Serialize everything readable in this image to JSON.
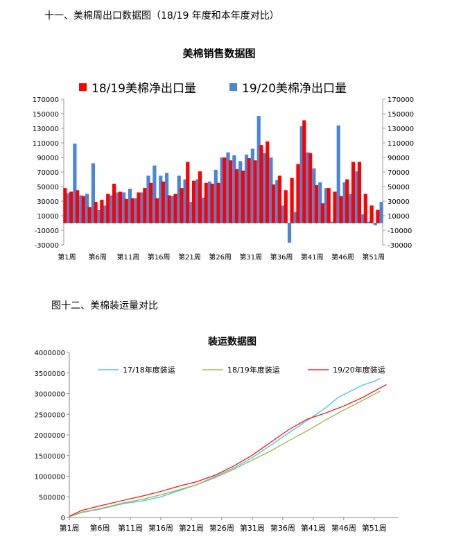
{
  "headings": {
    "section1": "十一、美棉周出口数据图（18/19 年度和本年度对比）",
    "section2": "图十二、美棉装运量对比"
  },
  "chart_data": [
    {
      "type": "bar",
      "title": "美棉销售数据图",
      "legend_position": "top",
      "grid": false,
      "ylim": [
        -30000,
        170000
      ],
      "yticks": [
        "170000",
        "150000",
        "130000",
        "110000",
        "90000",
        "70000",
        "50000",
        "30000",
        "10000",
        "-10000",
        "-30000"
      ],
      "xtick_labels": [
        "第1周",
        "第6周",
        "第11周",
        "第16周",
        "第21周",
        "第26周",
        "第31周",
        "第36周",
        "第41周",
        "第46周",
        "第51周"
      ],
      "categories": [
        "第1周",
        "第2周",
        "第3周",
        "第4周",
        "第5周",
        "第6周",
        "第7周",
        "第8周",
        "第9周",
        "第10周",
        "第11周",
        "第12周",
        "第13周",
        "第14周",
        "第15周",
        "第16周",
        "第17周",
        "第18周",
        "第19周",
        "第20周",
        "第21周",
        "第22周",
        "第23周",
        "第24周",
        "第25周",
        "第26周",
        "第27周",
        "第28周",
        "第29周",
        "第30周",
        "第31周",
        "第32周",
        "第33周",
        "第34周",
        "第35周",
        "第36周",
        "第37周",
        "第38周",
        "第39周",
        "第40周",
        "第41周",
        "第42周",
        "第43周",
        "第44周",
        "第45周",
        "第46周",
        "第47周",
        "第48周",
        "第49周",
        "第50周",
        "第51周",
        "第52周"
      ],
      "series": [
        {
          "name": "18/19美棉净出口量",
          "color": "#ff0000",
          "values": [
            48000,
            43000,
            45000,
            37000,
            22000,
            29000,
            32000,
            40000,
            54000,
            43000,
            33000,
            34000,
            42000,
            48000,
            55000,
            34000,
            57000,
            38000,
            40000,
            48000,
            84000,
            58000,
            71000,
            55000,
            54000,
            55000,
            90000,
            86000,
            74000,
            72000,
            89000,
            86000,
            107000,
            112000,
            53000,
            65000,
            45000,
            62000,
            81000,
            141000,
            96000,
            52000,
            27000,
            48000,
            43000,
            37000,
            60000,
            84000,
            84000,
            40000,
            24000,
            18000
          ]
        },
        {
          "name": "19/20美棉净出口量",
          "color": "#4a86d8",
          "values": [
            41000,
            109000,
            38000,
            40000,
            82000,
            18000,
            24000,
            38000,
            42000,
            42000,
            47000,
            34000,
            42000,
            65000,
            79000,
            65000,
            69000,
            37000,
            65000,
            60000,
            29000,
            60000,
            35000,
            57000,
            73000,
            90000,
            97000,
            93000,
            85000,
            94000,
            102000,
            147000,
            96000,
            90000,
            59000,
            24000,
            -27000,
            15000,
            133000,
            97000,
            75000,
            56000,
            48000,
            2000,
            134000,
            56000,
            40000,
            71000,
            12000,
            2000,
            -3000,
            29000
          ]
        }
      ]
    },
    {
      "type": "line",
      "title": "装运数据图",
      "legend_position": "top",
      "grid": false,
      "ylim": [
        0,
        4000000
      ],
      "yticks": [
        "4000000",
        "3500000",
        "3000000",
        "2500000",
        "2000000",
        "1500000",
        "1000000",
        "500000",
        "0"
      ],
      "xtick_labels": [
        "第1周",
        "第6周",
        "第11周",
        "第16周",
        "第21周",
        "第26周",
        "第31周",
        "第36周",
        "第41周",
        "第46周",
        "第51周"
      ],
      "x": [
        1,
        4,
        7,
        10,
        13,
        16,
        19,
        22,
        25,
        28,
        31,
        34,
        37,
        40,
        43,
        46,
        49,
        52
      ],
      "series": [
        {
          "name": "17/18年度装运",
          "color": "#4fc3f0",
          "x": [
            1,
            3,
            6,
            10,
            13,
            16,
            17,
            19,
            22,
            25,
            28,
            31,
            34,
            37,
            40,
            43,
            45,
            47,
            49,
            51,
            52
          ],
          "values": [
            20000,
            120000,
            200000,
            340000,
            400000,
            500000,
            550000,
            650000,
            800000,
            1000000,
            1200000,
            1450000,
            1750000,
            2050000,
            2350000,
            2650000,
            2900000,
            3050000,
            3200000,
            3300000,
            3370000
          ]
        },
        {
          "name": "18/19年度装运",
          "color": "#9bbb59",
          "x": [
            1,
            3,
            6,
            10,
            13,
            16,
            19,
            22,
            25,
            28,
            31,
            34,
            37,
            40,
            43,
            46,
            49,
            52
          ],
          "values": [
            20000,
            130000,
            210000,
            360000,
            440000,
            550000,
            670000,
            800000,
            970000,
            1170000,
            1390000,
            1610000,
            1860000,
            2100000,
            2360000,
            2600000,
            2830000,
            3060000
          ]
        },
        {
          "name": "19/20年度装运",
          "color": "#ff2020",
          "x": [
            1,
            3,
            6,
            10,
            13,
            16,
            19,
            22,
            25,
            28,
            31,
            34,
            37,
            40,
            43,
            46,
            49,
            53
          ],
          "values": [
            30000,
            170000,
            280000,
            420000,
            520000,
            630000,
            760000,
            870000,
            1030000,
            1250000,
            1510000,
            1820000,
            2130000,
            2380000,
            2530000,
            2700000,
            2900000,
            3220000
          ]
        }
      ]
    }
  ]
}
